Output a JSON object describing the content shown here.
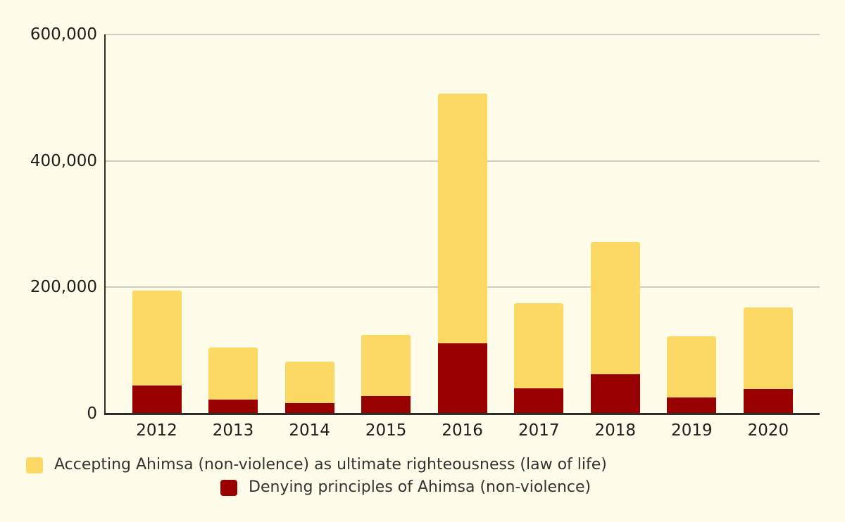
{
  "background_color": "#FFFDE9",
  "chart_data": {
    "type": "bar",
    "stacked": true,
    "title": "",
    "xlabel": "",
    "ylabel": "",
    "categories": [
      "2012",
      "2013",
      "2014",
      "2015",
      "2016",
      "2017",
      "2018",
      "2019",
      "2020"
    ],
    "series": [
      {
        "name": "Denying principles of Ahimsa (non-violence)",
        "color": "#990000",
        "stack_position": "bottom",
        "values": [
          45000,
          22000,
          17000,
          28000,
          111000,
          40000,
          62000,
          26000,
          39000
        ]
      },
      {
        "name": "Accepting Ahimsa (non-violence) as ultimate righteousness (law of life)",
        "color": "#FCD864",
        "stack_position": "top",
        "values": [
          150000,
          83000,
          65000,
          97000,
          395000,
          135000,
          210000,
          96000,
          129000
        ]
      }
    ],
    "stacked_totals": [
      195000,
      105000,
      82000,
      125000,
      506000,
      175000,
      272000,
      122000,
      168000
    ],
    "ylim": [
      0,
      600000
    ],
    "y_ticks": [
      0,
      200000,
      400000,
      600000
    ],
    "y_tick_labels": [
      "0",
      "200,000",
      "400,000",
      "600,000"
    ],
    "grid": true,
    "gridline_color": "#CCCCC5",
    "axis_color": "#2E2E2E",
    "legend_position": "bottom"
  },
  "legend": {
    "items": [
      {
        "label": "Accepting Ahimsa (non-violence) as ultimate righteousness (law of life)",
        "color": "#FCD864"
      },
      {
        "label": "Denying principles of Ahimsa (non-violence)",
        "color": "#990000"
      }
    ]
  }
}
